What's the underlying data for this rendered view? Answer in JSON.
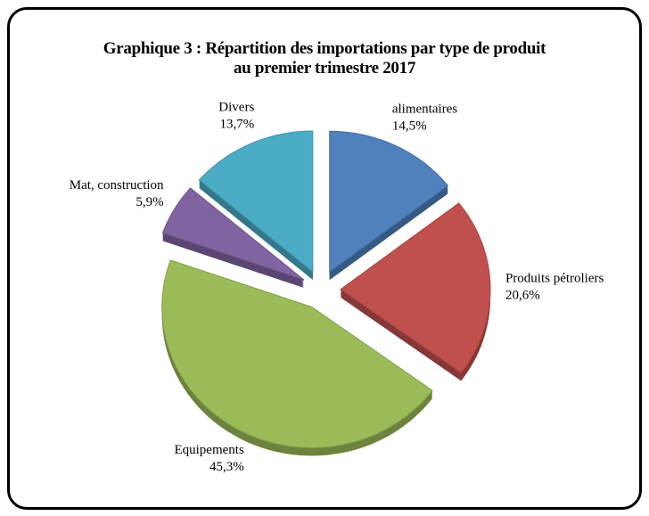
{
  "chart_data": {
    "type": "pie",
    "title": "Graphique 3 : Répartition des importations par type de produit au premier  trimestre 2017",
    "categories": [
      "alimentaires",
      "Produits pétroliers",
      "Equipements",
      "Mat, construction",
      "Divers"
    ],
    "values": [
      14.5,
      20.6,
      45.3,
      5.9,
      13.7
    ],
    "value_labels": [
      "14,5%",
      "20,6%",
      "45,3%",
      "5,9%",
      "13,7%"
    ],
    "colors": [
      "#4f81bd",
      "#c0504d",
      "#9bbb59",
      "#8064a2",
      "#4bacc6"
    ]
  }
}
